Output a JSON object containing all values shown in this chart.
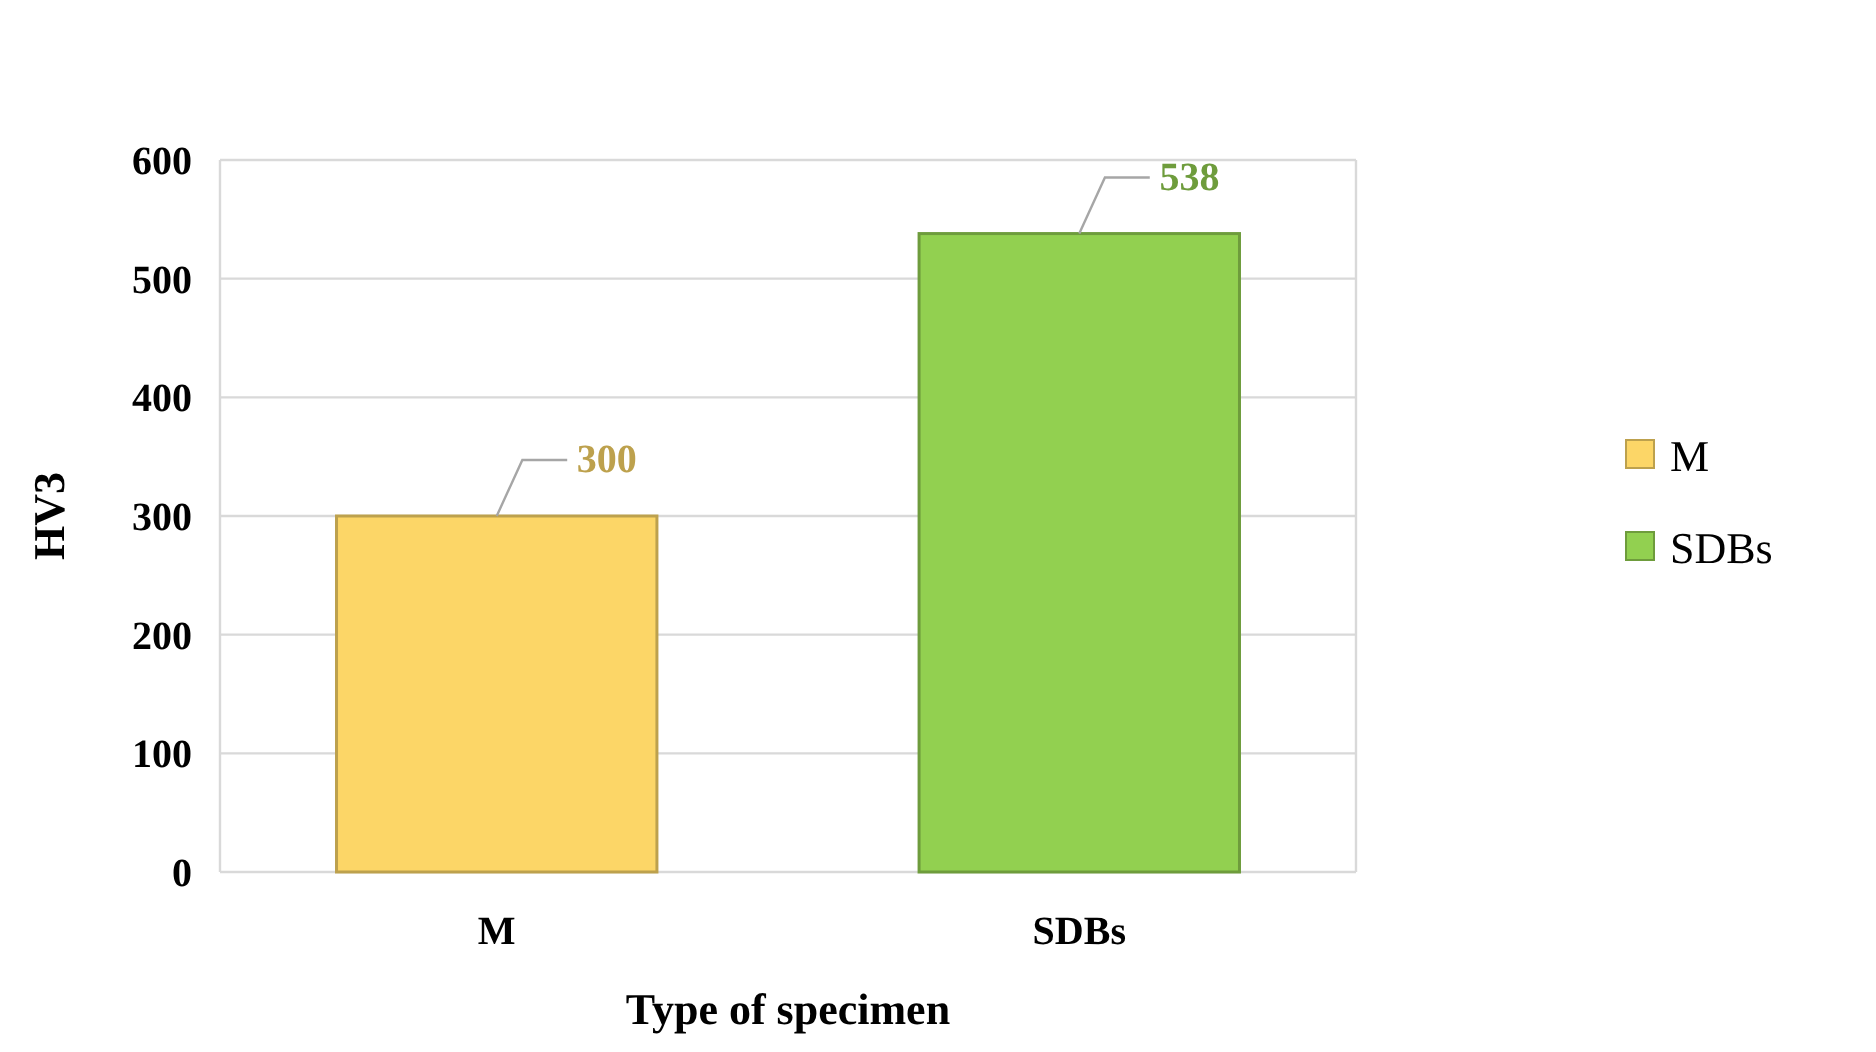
{
  "chart_data": {
    "type": "bar",
    "xlabel": "Type of specimen",
    "ylabel": "HV3",
    "categories": [
      "M",
      "SDBs"
    ],
    "series": [
      {
        "name": "M",
        "color": "#fcd667",
        "values": [
          300,
          null
        ]
      },
      {
        "name": "SDBs",
        "color": "#92d050",
        "values": [
          null,
          538
        ]
      }
    ],
    "ylim": [
      0,
      600
    ],
    "yticks": [
      0,
      100,
      200,
      300,
      400,
      500,
      600
    ],
    "grid": "y",
    "legend": "right",
    "data_labels": true
  }
}
